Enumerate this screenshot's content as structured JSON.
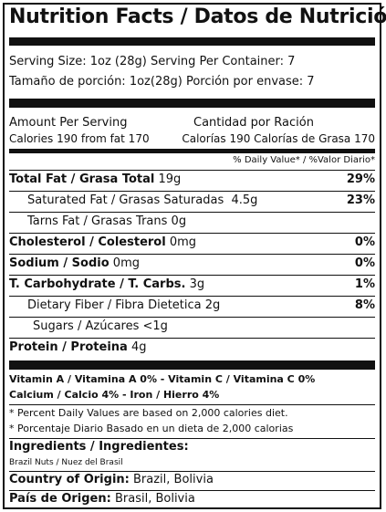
{
  "title": "Nutrition Facts / Datos de Nutrición",
  "serving": {
    "size_en": "Serving Size: 1oz (28g) Serving Per Container: 7",
    "size_es": "Tamaño de porción: 1oz(28g) Porción por envase: 7"
  },
  "amount": {
    "header_en": "Amount Per Serving",
    "header_es": "Cantidad por Ración",
    "calories_en": "Calories 190  from fat 170",
    "calories_es": "Calorías 190 Calorías de Grasa 170",
    "dv_header": "% Daily Value* / %Valor Diario*"
  },
  "nutrients": [
    {
      "name": "Total Fat / Grasa Total",
      "amount": "19g",
      "dv": "29%"
    },
    {
      "name": "Saturated Fat / Grasas Saturadas",
      "amount": "4.5g",
      "dv": "23%"
    },
    {
      "name": "Tarns Fat / Grasas Trans",
      "amount": "0g",
      "dv": ""
    },
    {
      "name": "Cholesterol / Colesterol",
      "amount": "0mg",
      "dv": "0%"
    },
    {
      "name": "Sodium / Sodio",
      "amount": "0mg",
      "dv": "0%"
    },
    {
      "name": "T. Carbohydrate / T. Carbs.",
      "amount": "3g",
      "dv": "1%"
    },
    {
      "name": "Dietary Fiber / Fibra Dietetica",
      "amount": "2g",
      "dv": "8%"
    },
    {
      "name": "Sugars / Azúcares",
      "amount": "<1g",
      "dv": ""
    },
    {
      "name": "Protein / Proteina",
      "amount": "4g",
      "dv": ""
    }
  ],
  "vitamins": {
    "line1": "Vitamin A / Vitamina A 0%  - Vitamin C / Vitamina C 0%",
    "line2": "Calcium / Calcio 4%  -  Iron / Hierro 4%"
  },
  "footnotes": [
    "* Percent Daily Values are based on 2,000 calories diet.",
    "* Porcentaje Diario Basado en un dieta de 2,000 calorias"
  ],
  "ingredients": {
    "heading": "Ingredients / Ingredientes:",
    "text": "Brazil Nuts / Nuez del Brasil"
  },
  "origin": {
    "en_label": "Country of Origin:",
    "en_value": "Brazil, Bolivia",
    "es_label": "País de Origen:",
    "es_value": "Brasil, Bolivia"
  }
}
